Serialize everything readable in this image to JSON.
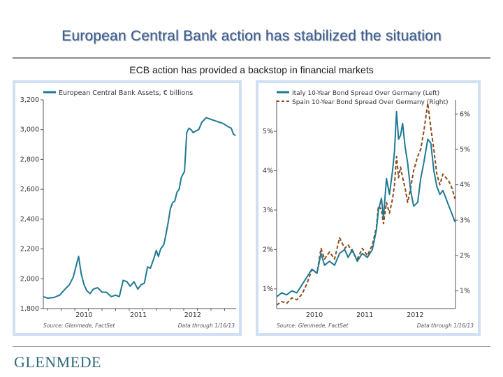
{
  "title": "European Central Bank action has stabilized the situation",
  "subtitle": "ECB action has provided a backstop in financial markets",
  "logo": "GLENMEDE",
  "colors": {
    "title": "#3a5b8c",
    "teal": "#1f7a94",
    "brown": "#8b4a1c",
    "panel_border": "#cfe0f3"
  },
  "chart_data": [
    {
      "type": "line",
      "legend": [
        "European Central Bank Assets, € billions"
      ],
      "ylim": [
        1800,
        3200
      ],
      "y_ticks": [
        "3,200",
        "3,000",
        "2,800",
        "2,600",
        "2,400",
        "2,200",
        "2,000",
        "1,800"
      ],
      "y_tick_values": [
        3200,
        3000,
        2800,
        2600,
        2400,
        2200,
        2000,
        1800
      ],
      "x_ticks": [
        "2010",
        "2011",
        "2012"
      ],
      "x_tick_values": [
        2010.25,
        2011.25,
        2012.25
      ],
      "xlim": [
        2009.5,
        2013.05
      ],
      "source": "Source: Glenmede, FactSet",
      "note": "Data through 1/16/13",
      "series": [
        {
          "name": "European Central Bank Assets, € billions",
          "x": [
            2009.5,
            2009.58,
            2009.7,
            2009.8,
            2009.9,
            2009.98,
            2010.05,
            2010.1,
            2010.15,
            2010.2,
            2010.25,
            2010.3,
            2010.36,
            2010.42,
            2010.5,
            2010.58,
            2010.66,
            2010.75,
            2010.83,
            2010.9,
            2010.97,
            2011.04,
            2011.1,
            2011.17,
            2011.24,
            2011.3,
            2011.36,
            2011.42,
            2011.47,
            2011.53,
            2011.58,
            2011.62,
            2011.66,
            2011.72,
            2011.76,
            2011.8,
            2011.84,
            2011.88,
            2011.92,
            2011.96,
            2012.0,
            2012.04,
            2012.07,
            2012.1,
            2012.14,
            2012.18,
            2012.22,
            2012.26,
            2012.3,
            2012.36,
            2012.42,
            2012.5,
            2012.58,
            2012.66,
            2012.74,
            2012.82,
            2012.9,
            2012.96,
            2013.0,
            2013.04
          ],
          "values": [
            1880,
            1870,
            1875,
            1890,
            1930,
            1960,
            2010,
            2080,
            2150,
            2030,
            1960,
            1920,
            1900,
            1930,
            1940,
            1910,
            1910,
            1880,
            1890,
            1880,
            1990,
            1980,
            1950,
            1980,
            1930,
            1960,
            1970,
            2080,
            2070,
            2130,
            2190,
            2150,
            2200,
            2230,
            2300,
            2380,
            2470,
            2510,
            2520,
            2580,
            2600,
            2680,
            2700,
            2720,
            2980,
            3010,
            3000,
            2980,
            2990,
            3000,
            3050,
            3080,
            3070,
            3060,
            3050,
            3040,
            3020,
            3010,
            2970,
            2960
          ]
        }
      ]
    },
    {
      "type": "line",
      "legend": [
        "Italy 10-Year Bond Spread Over Germany (Left)",
        "Spain 10-Year Bond Spread Over Germany (Right)"
      ],
      "left_axis": {
        "ylim": [
          0.5,
          5.8
        ],
        "ticks": [
          "5%",
          "4%",
          "3%",
          "2%",
          "1%"
        ],
        "tick_values": [
          5,
          4,
          3,
          2,
          1
        ]
      },
      "right_axis": {
        "ylim": [
          0.5,
          6.4
        ],
        "ticks": [
          "6%",
          "5%",
          "4%",
          "3%",
          "2%",
          "1%"
        ],
        "tick_values": [
          6,
          5,
          4,
          3,
          2,
          1
        ]
      },
      "x_ticks": [
        "2010",
        "2011",
        "2012"
      ],
      "x_tick_values": [
        2010.25,
        2011.25,
        2012.25
      ],
      "xlim": [
        2009.5,
        2013.05
      ],
      "source": "Source: Glenmede, FactSet",
      "note": "Data through 1/16/13",
      "series": [
        {
          "name": "Italy 10-Year Bond Spread Over Germany (Left)",
          "axis": "left",
          "x": [
            2009.5,
            2009.6,
            2009.7,
            2009.8,
            2009.9,
            2010.0,
            2010.1,
            2010.2,
            2010.3,
            2010.38,
            2010.45,
            2010.55,
            2010.65,
            2010.75,
            2010.85,
            2010.92,
            2011.0,
            2011.1,
            2011.2,
            2011.3,
            2011.4,
            2011.48,
            2011.52,
            2011.58,
            2011.62,
            2011.68,
            2011.74,
            2011.8,
            2011.84,
            2011.88,
            2011.92,
            2011.96,
            2012.0,
            2012.05,
            2012.1,
            2012.16,
            2012.22,
            2012.3,
            2012.36,
            2012.42,
            2012.5,
            2012.56,
            2012.62,
            2012.68,
            2012.74,
            2012.8,
            2012.86,
            2012.92,
            2012.98,
            2013.04
          ],
          "values": [
            0.8,
            0.9,
            0.85,
            0.95,
            0.9,
            1.1,
            1.3,
            1.5,
            1.4,
            1.9,
            1.6,
            1.7,
            1.6,
            1.9,
            2.0,
            1.8,
            2.0,
            1.7,
            1.9,
            1.8,
            2.0,
            2.5,
            3.0,
            3.3,
            2.8,
            3.8,
            3.4,
            4.0,
            4.5,
            5.5,
            4.8,
            4.9,
            5.2,
            4.6,
            4.2,
            3.5,
            3.1,
            3.2,
            3.8,
            4.2,
            4.8,
            4.7,
            4.0,
            3.6,
            3.4,
            3.5,
            3.3,
            3.1,
            2.9,
            2.7
          ]
        },
        {
          "name": "Spain 10-Year Bond Spread Over Germany (Right)",
          "axis": "right",
          "x": [
            2009.5,
            2009.6,
            2009.7,
            2009.8,
            2009.9,
            2010.0,
            2010.1,
            2010.2,
            2010.3,
            2010.38,
            2010.45,
            2010.55,
            2010.65,
            2010.75,
            2010.85,
            2010.92,
            2011.0,
            2011.1,
            2011.2,
            2011.3,
            2011.4,
            2011.48,
            2011.52,
            2011.58,
            2011.62,
            2011.68,
            2011.74,
            2011.8,
            2011.84,
            2011.88,
            2011.92,
            2011.96,
            2012.0,
            2012.05,
            2012.1,
            2012.16,
            2012.22,
            2012.3,
            2012.36,
            2012.42,
            2012.5,
            2012.56,
            2012.62,
            2012.68,
            2012.74,
            2012.8,
            2012.86,
            2012.92,
            2012.98,
            2013.04
          ],
          "values": [
            0.6,
            0.7,
            0.65,
            0.8,
            0.75,
            0.9,
            1.2,
            1.6,
            1.5,
            2.2,
            1.9,
            2.1,
            1.9,
            2.5,
            2.2,
            2.3,
            2.1,
            1.9,
            2.2,
            2.0,
            2.3,
            2.8,
            3.4,
            3.3,
            2.9,
            3.5,
            3.2,
            3.6,
            4.0,
            4.8,
            4.2,
            4.5,
            4.2,
            3.9,
            3.5,
            3.9,
            4.4,
            4.8,
            5.0,
            5.5,
            6.3,
            5.6,
            5.0,
            4.3,
            4.0,
            4.3,
            4.2,
            4.1,
            3.9,
            3.6
          ]
        }
      ]
    }
  ]
}
